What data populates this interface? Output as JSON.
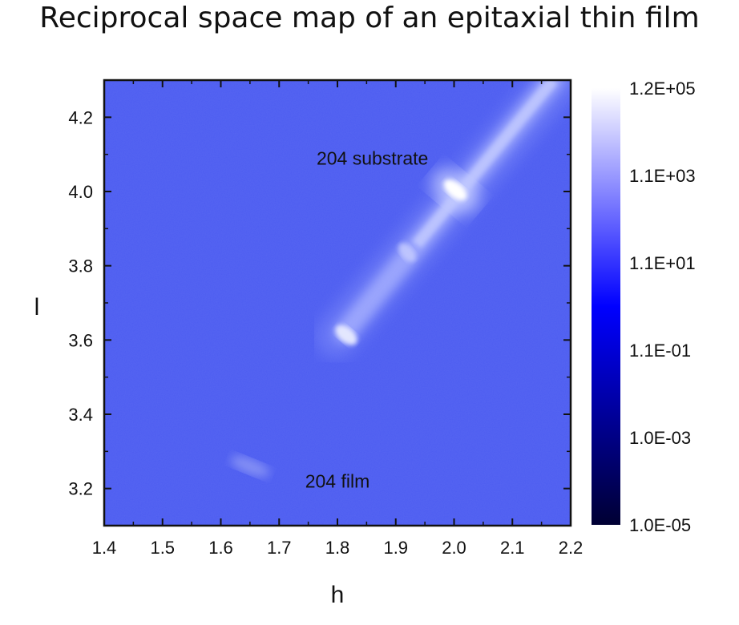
{
  "chart_data": {
    "type": "heatmap",
    "title": "Reciprocal space map of an epitaxial thin film",
    "xlabel": "h",
    "ylabel": "l",
    "xlim": [
      1.4,
      2.2
    ],
    "ylim": [
      3.1,
      4.3
    ],
    "x_ticks": [
      "1.4",
      "1.5",
      "1.6",
      "1.7",
      "1.8",
      "1.9",
      "2.0",
      "2.1",
      "2.2"
    ],
    "y_ticks": [
      "3.2",
      "3.4",
      "3.6",
      "3.8",
      "4.0",
      "4.2"
    ],
    "colorbar": {
      "scale": "log",
      "range": [
        1e-05,
        120000
      ],
      "labels": [
        "1.2E+05",
        "1.1E+03",
        "1.1E+01",
        "1.1E-01",
        "1.0E-03",
        "1.0E-05"
      ],
      "colors": [
        "#000033",
        "#0000ff",
        "#ffffff"
      ]
    },
    "background_color": "#4c5cf0",
    "features": [
      {
        "label": "204 substrate",
        "h": 2.0,
        "l": 4.0
      },
      {
        "label": "204 film",
        "h": 1.65,
        "l": 3.27
      }
    ],
    "annotations": [
      {
        "text": "204 substrate",
        "h": 1.86,
        "l": 4.09
      },
      {
        "text": "204 film",
        "h": 1.8,
        "l": 3.22
      }
    ]
  }
}
